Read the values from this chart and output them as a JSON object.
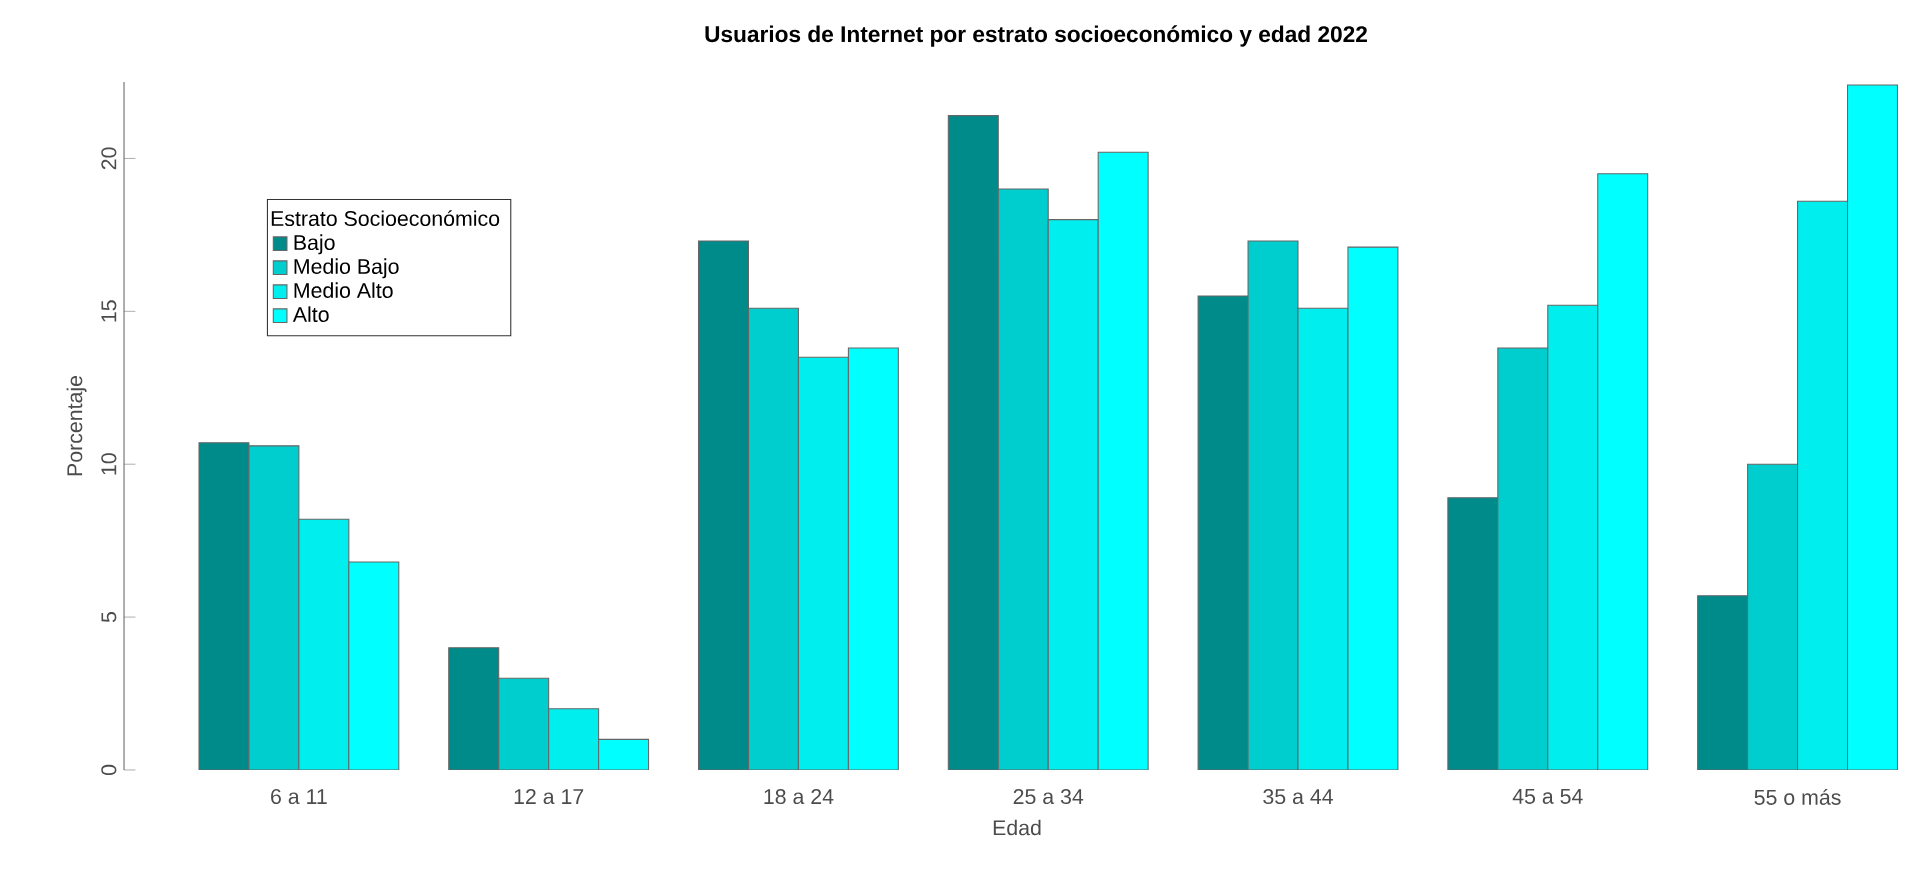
{
  "chart_data": {
    "type": "bar",
    "title": "Usuarios de Internet por estrato socioeconómico y edad 2022",
    "xlabel": "Edad",
    "ylabel": "Porcentaje",
    "legend_title": "Estrato Socioeconómico",
    "legend": "top left",
    "categories": [
      "6 a 11",
      "12 a 17",
      "18 a 24",
      "25 a 34",
      "35 a 44",
      "45 a 54",
      "55 o más"
    ],
    "series": [
      {
        "name": "Bajo",
        "color": "#008b8b",
        "values": [
          10.7,
          4.0,
          17.3,
          21.4,
          15.5,
          8.9,
          5.7
        ]
      },
      {
        "name": "Medio Bajo",
        "color": "#00cdcd",
        "values": [
          10.6,
          3.0,
          15.1,
          19.0,
          17.3,
          13.8,
          10.0
        ]
      },
      {
        "name": "Medio Alto",
        "color": "#00eeee",
        "values": [
          8.2,
          2.0,
          13.5,
          18.0,
          15.1,
          15.2,
          18.6
        ]
      },
      {
        "name": "Alto",
        "color": "#00ffff",
        "values": [
          6.8,
          1.0,
          13.8,
          20.2,
          17.1,
          19.5,
          22.4
        ]
      }
    ],
    "ylim": [
      0,
      22.5
    ],
    "yticks": [
      0,
      5,
      10,
      15,
      20
    ]
  }
}
